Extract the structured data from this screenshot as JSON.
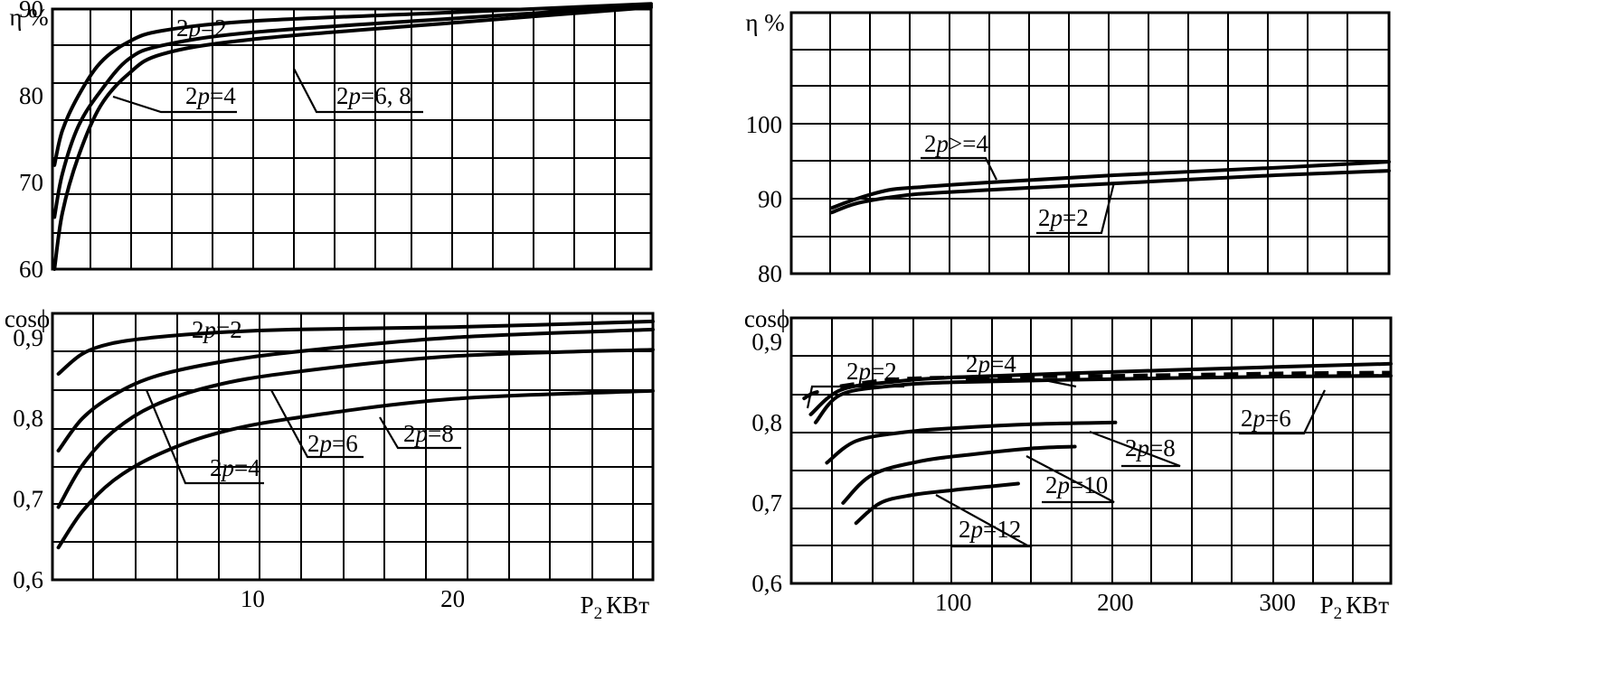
{
  "chart_data": [
    {
      "type": "line",
      "panel": "efficiency-small",
      "ylabel": "η %",
      "xlabel": "",
      "xlim": [
        0,
        30
      ],
      "ylim": [
        60,
        90
      ],
      "y_ticks": [
        {
          "value": 60,
          "label": "60"
        },
        {
          "value": 70,
          "label": "70"
        },
        {
          "value": 80,
          "label": "80"
        },
        {
          "value": 90,
          "label": "90"
        }
      ],
      "x_ticks": [],
      "grid": true,
      "series": [
        {
          "name": "2p=2",
          "x": [
            0.1,
            0.5,
            1.3,
            2.4,
            3.8,
            5.5,
            10,
            20,
            30
          ],
          "y": [
            72,
            76,
            80,
            83.8,
            86.2,
            87.5,
            88.6,
            89.6,
            90.6
          ]
        },
        {
          "name": "2p=4",
          "x": [
            0.1,
            0.5,
            1.3,
            2.4,
            3.8,
            5.5,
            10,
            20,
            30
          ],
          "y": [
            66,
            71,
            76.5,
            80.5,
            84.2,
            85.8,
            87.3,
            88.9,
            90.4
          ]
        },
        {
          "name": "2p=6, 8",
          "x": [
            0.1,
            0.5,
            1.3,
            2.4,
            3.8,
            5.5,
            10,
            20,
            30
          ],
          "y": [
            60,
            66.5,
            73,
            78.8,
            82.5,
            84.8,
            86.5,
            88.4,
            90.2
          ]
        }
      ],
      "annotations": [
        {
          "text": "2p=2",
          "curve": "2p=2"
        },
        {
          "text": "2p=4",
          "curve": "2p=4"
        },
        {
          "text": "2p=6, 8",
          "curve": "2p=6, 8"
        }
      ]
    },
    {
      "type": "line",
      "panel": "efficiency-large",
      "ylabel": "η %",
      "xlabel": "",
      "xlim": [
        0,
        370
      ],
      "ylim": [
        80,
        115
      ],
      "y_ticks": [
        {
          "value": 80,
          "label": "80"
        },
        {
          "value": 90,
          "label": "90"
        },
        {
          "value": 100,
          "label": "100"
        }
      ],
      "x_ticks": [],
      "grid": true,
      "series": [
        {
          "name": "2p>=4",
          "x": [
            25,
            40,
            60,
            80,
            120,
            200,
            300,
            370
          ],
          "y": [
            88.8,
            90,
            91.2,
            91.6,
            92.2,
            93.2,
            94.2,
            95
          ]
        },
        {
          "name": "2p=2",
          "x": [
            25,
            40,
            60,
            80,
            120,
            200,
            300,
            370
          ],
          "y": [
            88.2,
            89.4,
            90.2,
            90.7,
            91.2,
            92.1,
            93.2,
            93.8
          ]
        }
      ],
      "annotations": [
        {
          "text": "2p>=4",
          "curve": "2p>=4"
        },
        {
          "text": "2p=2",
          "curve": "2p=2"
        }
      ]
    },
    {
      "type": "line",
      "panel": "power-factor-small",
      "ylabel": "cosϕ",
      "xlabel": "P2 КВт",
      "xlim": [
        0,
        30
      ],
      "ylim": [
        0.6,
        0.93
      ],
      "y_ticks": [
        {
          "value": 0.6,
          "label": "0,6"
        },
        {
          "value": 0.7,
          "label": "0,7"
        },
        {
          "value": 0.8,
          "label": "0,8"
        },
        {
          "value": 0.9,
          "label": "0,9"
        }
      ],
      "x_ticks": [
        {
          "value": 10,
          "label": "10"
        },
        {
          "value": 20,
          "label": "20"
        }
      ],
      "grid": true,
      "series": [
        {
          "name": "2p=2",
          "x": [
            0.3,
            1.5,
            3,
            5,
            8,
            12,
            20,
            30
          ],
          "y": [
            0.855,
            0.88,
            0.893,
            0.9,
            0.906,
            0.91,
            0.913,
            0.92
          ]
        },
        {
          "name": "2p=4",
          "x": [
            0.3,
            1.5,
            3,
            5,
            8,
            12,
            20,
            30
          ],
          "y": [
            0.76,
            0.8,
            0.828,
            0.851,
            0.868,
            0.882,
            0.9,
            0.91
          ]
        },
        {
          "name": "2p=6",
          "x": [
            0.3,
            1.5,
            3,
            5,
            8,
            12,
            20,
            30
          ],
          "y": [
            0.69,
            0.742,
            0.783,
            0.815,
            0.84,
            0.857,
            0.877,
            0.885
          ]
        },
        {
          "name": "2p=8",
          "x": [
            0.3,
            1.5,
            3,
            5,
            8,
            12,
            20,
            30
          ],
          "y": [
            0.64,
            0.685,
            0.722,
            0.752,
            0.78,
            0.8,
            0.824,
            0.834
          ]
        }
      ],
      "annotations": [
        {
          "text": "2p=2",
          "curve": "2p=2"
        },
        {
          "text": "2p=4",
          "curve": "2p=4"
        },
        {
          "text": "2p=6",
          "curve": "2p=6"
        },
        {
          "text": "2p=8",
          "curve": "2p=8"
        }
      ]
    },
    {
      "type": "line",
      "panel": "power-factor-large",
      "ylabel": "cosϕ",
      "xlabel": "P2 КВт",
      "xlim": [
        0,
        370
      ],
      "ylim": [
        0.6,
        0.93
      ],
      "y_ticks": [
        {
          "value": 0.6,
          "label": "0,6"
        },
        {
          "value": 0.7,
          "label": "0,7"
        },
        {
          "value": 0.8,
          "label": "0,8"
        },
        {
          "value": 0.9,
          "label": "0,9"
        }
      ],
      "x_ticks": [
        {
          "value": 100,
          "label": "100"
        },
        {
          "value": 200,
          "label": "200"
        },
        {
          "value": 300,
          "label": "300"
        }
      ],
      "grid": true,
      "series": [
        {
          "name": "2p=2",
          "x": [
            8,
            12,
            16
          ],
          "y": [
            0.83,
            0.835,
            0.838
          ]
        },
        {
          "name": "2p=4",
          "x": [
            12,
            30,
            60,
            100,
            200,
            300,
            370
          ],
          "y": [
            0.81,
            0.84,
            0.85,
            0.856,
            0.863,
            0.869,
            0.873
          ]
        },
        {
          "name": "2p=4 dashed",
          "x": [
            30,
            60,
            100,
            200,
            300,
            370
          ],
          "y": [
            0.845,
            0.853,
            0.856,
            0.858,
            0.861,
            0.862
          ]
        },
        {
          "name": "2p=6",
          "x": [
            15,
            30,
            60,
            100,
            200,
            300,
            370
          ],
          "y": [
            0.8,
            0.834,
            0.845,
            0.85,
            0.854,
            0.857,
            0.858
          ]
        },
        {
          "name": "2p=8",
          "x": [
            22,
            40,
            70,
            100,
            150,
            200
          ],
          "y": [
            0.75,
            0.777,
            0.788,
            0.793,
            0.798,
            0.8
          ]
        },
        {
          "name": "2p=10",
          "x": [
            32,
            50,
            80,
            110,
            150,
            175
          ],
          "y": [
            0.7,
            0.735,
            0.752,
            0.76,
            0.768,
            0.77
          ]
        },
        {
          "name": "2p=12",
          "x": [
            40,
            55,
            75,
            100,
            125,
            140
          ],
          "y": [
            0.675,
            0.7,
            0.71,
            0.716,
            0.721,
            0.724
          ]
        }
      ],
      "annotations": [
        {
          "text": "2p=2",
          "curve": "2p=2"
        },
        {
          "text": "2p=4",
          "curve": "2p=4"
        },
        {
          "text": "2p=6",
          "curve": "2p=6"
        },
        {
          "text": "2p=8",
          "curve": "2p=8"
        },
        {
          "text": "2p=10",
          "curve": "2p=10"
        },
        {
          "text": "2p=12",
          "curve": "2p=12"
        }
      ]
    }
  ]
}
